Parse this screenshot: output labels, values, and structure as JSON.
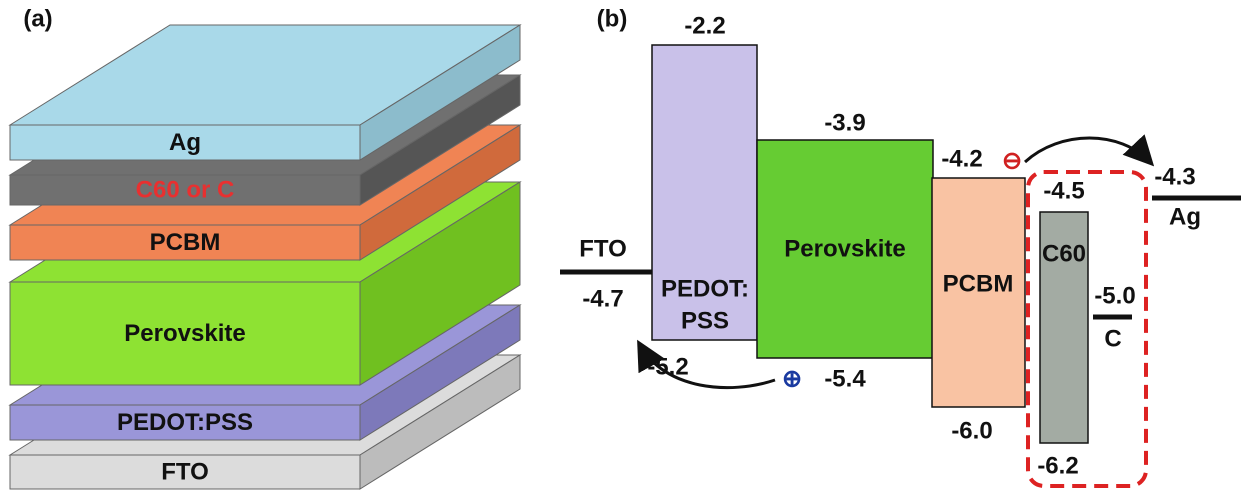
{
  "panel_a": {
    "label": "(a)",
    "layers": [
      "Ag",
      "C60 or C",
      "PCBM",
      "Perovskite",
      "PEDOT:PSS",
      "FTO"
    ]
  },
  "panel_b": {
    "label": "(b)",
    "fto": {
      "name": "FTO",
      "level": "-4.7"
    },
    "pedot": {
      "name_lines": [
        "PEDOT:",
        "PSS"
      ],
      "top": "-2.2",
      "bottom": "-5.2"
    },
    "perovskite": {
      "name": "Perovskite",
      "top": "-3.9",
      "bottom": "-5.4"
    },
    "pcbm": {
      "name": "PCBM",
      "top": "-4.2",
      "bottom": "-6.0"
    },
    "c60": {
      "name": "C60",
      "top": "-4.5",
      "bottom": "-6.2"
    },
    "carbon": {
      "name": "C",
      "level": "-5.0"
    },
    "ag": {
      "name": "Ag",
      "level": "-4.3"
    },
    "hole_symbol": "⊕",
    "electron_symbol": "⊖"
  }
}
